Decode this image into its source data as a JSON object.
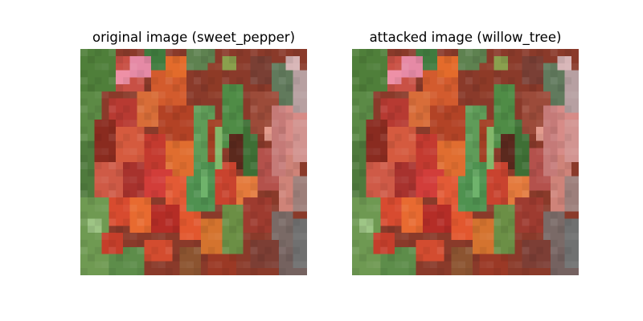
{
  "figure": {
    "left_title": "original image (sweet_pepper)",
    "right_title": "attacked image (willow_tree)"
  }
}
